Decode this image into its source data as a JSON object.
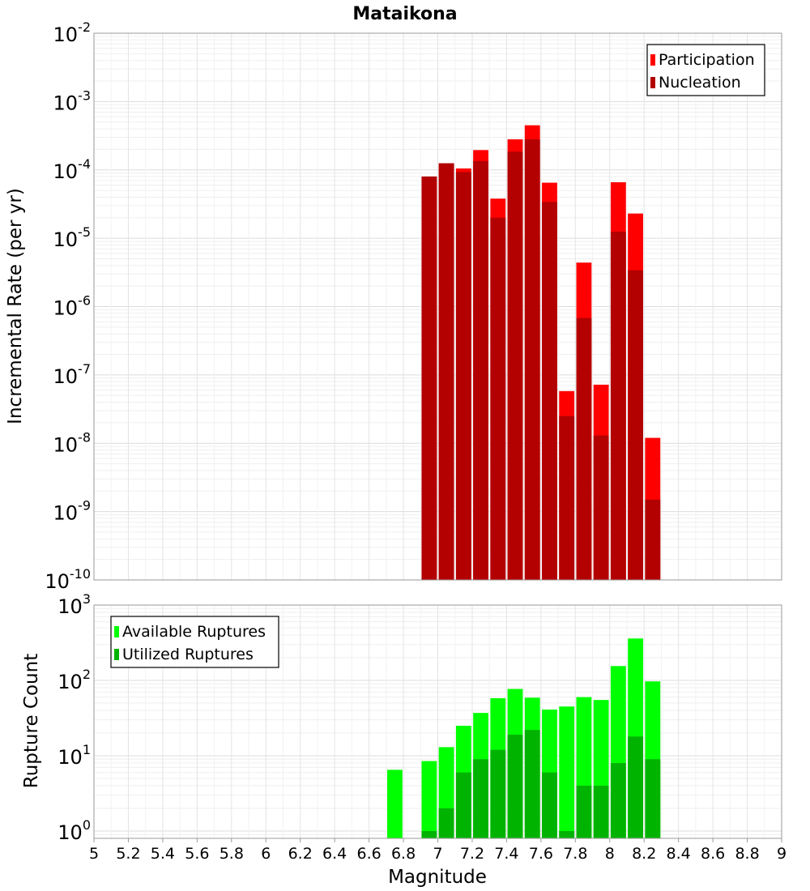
{
  "chart_data": [
    {
      "type": "bar",
      "title": "Mataikona",
      "xlabel": "",
      "ylabel": "Incremental Rate (per yr)",
      "yscale": "log",
      "ylim": [
        1e-10,
        0.01
      ],
      "y_ticks": [
        {
          "base": "10",
          "exp": "-10"
        },
        {
          "base": "10",
          "exp": "-9"
        },
        {
          "base": "10",
          "exp": "-8"
        },
        {
          "base": "10",
          "exp": "-7"
        },
        {
          "base": "10",
          "exp": "-6"
        },
        {
          "base": "10",
          "exp": "-5"
        },
        {
          "base": "10",
          "exp": "-4"
        },
        {
          "base": "10",
          "exp": "-3"
        },
        {
          "base": "10",
          "exp": "-2"
        }
      ],
      "grid": true,
      "legend_position": "top-right",
      "x": [
        6.95,
        7.05,
        7.15,
        7.25,
        7.35,
        7.45,
        7.55,
        7.65,
        7.75,
        7.85,
        7.95,
        8.05,
        8.15,
        8.25
      ],
      "series": [
        {
          "name": "Participation",
          "color": "#ff0000",
          "values": [
            8e-05,
            0.000125,
            0.000105,
            0.000195,
            3.8e-05,
            0.00028,
            0.00045,
            6.5e-05,
            5.8e-08,
            4.4e-06,
            7.2e-08,
            6.6e-05,
            2.3e-05,
            1.2e-08
          ]
        },
        {
          "name": "Nucleation",
          "color": "#b30000",
          "values": [
            8e-05,
            0.000125,
            9.3e-05,
            0.000135,
            2e-05,
            0.000185,
            0.00028,
            3.4e-05,
            2.5e-08,
            6.8e-07,
            1.3e-08,
            1.25e-05,
            3.4e-06,
            1.5e-09
          ]
        }
      ]
    },
    {
      "type": "bar",
      "title": "",
      "xlabel": "Magnitude",
      "ylabel": "Rupture Count",
      "yscale": "log",
      "ylim": [
        0.8,
        1000
      ],
      "y_ticks": [
        {
          "base": "10",
          "exp": "0"
        },
        {
          "base": "10",
          "exp": "1"
        },
        {
          "base": "10",
          "exp": "2"
        },
        {
          "base": "10",
          "exp": "3"
        }
      ],
      "grid": true,
      "legend_position": "top-left",
      "xlim": [
        5,
        9
      ],
      "x_ticks": [
        "5",
        "5.2",
        "5.4",
        "5.6",
        "5.8",
        "6",
        "6.2",
        "6.4",
        "6.6",
        "6.8",
        "7",
        "7.2",
        "7.4",
        "7.6",
        "7.8",
        "8",
        "8.2",
        "8.4",
        "8.6",
        "8.8",
        "9"
      ],
      "x": [
        6.75,
        6.95,
        7.05,
        7.15,
        7.25,
        7.35,
        7.45,
        7.55,
        7.65,
        7.75,
        7.85,
        7.95,
        8.05,
        8.15,
        8.25
      ],
      "series": [
        {
          "name": "Available Ruptures",
          "color": "#00ff00",
          "values": [
            6.5,
            8.5,
            13,
            25,
            37,
            58,
            77,
            59,
            41,
            45,
            60,
            55,
            155,
            360,
            97
          ]
        },
        {
          "name": "Utilized Ruptures",
          "color": "#00b300",
          "values": [
            0,
            1,
            2,
            6,
            9,
            12,
            19,
            22,
            6,
            1,
            4,
            4,
            8,
            18,
            9
          ]
        }
      ]
    }
  ]
}
